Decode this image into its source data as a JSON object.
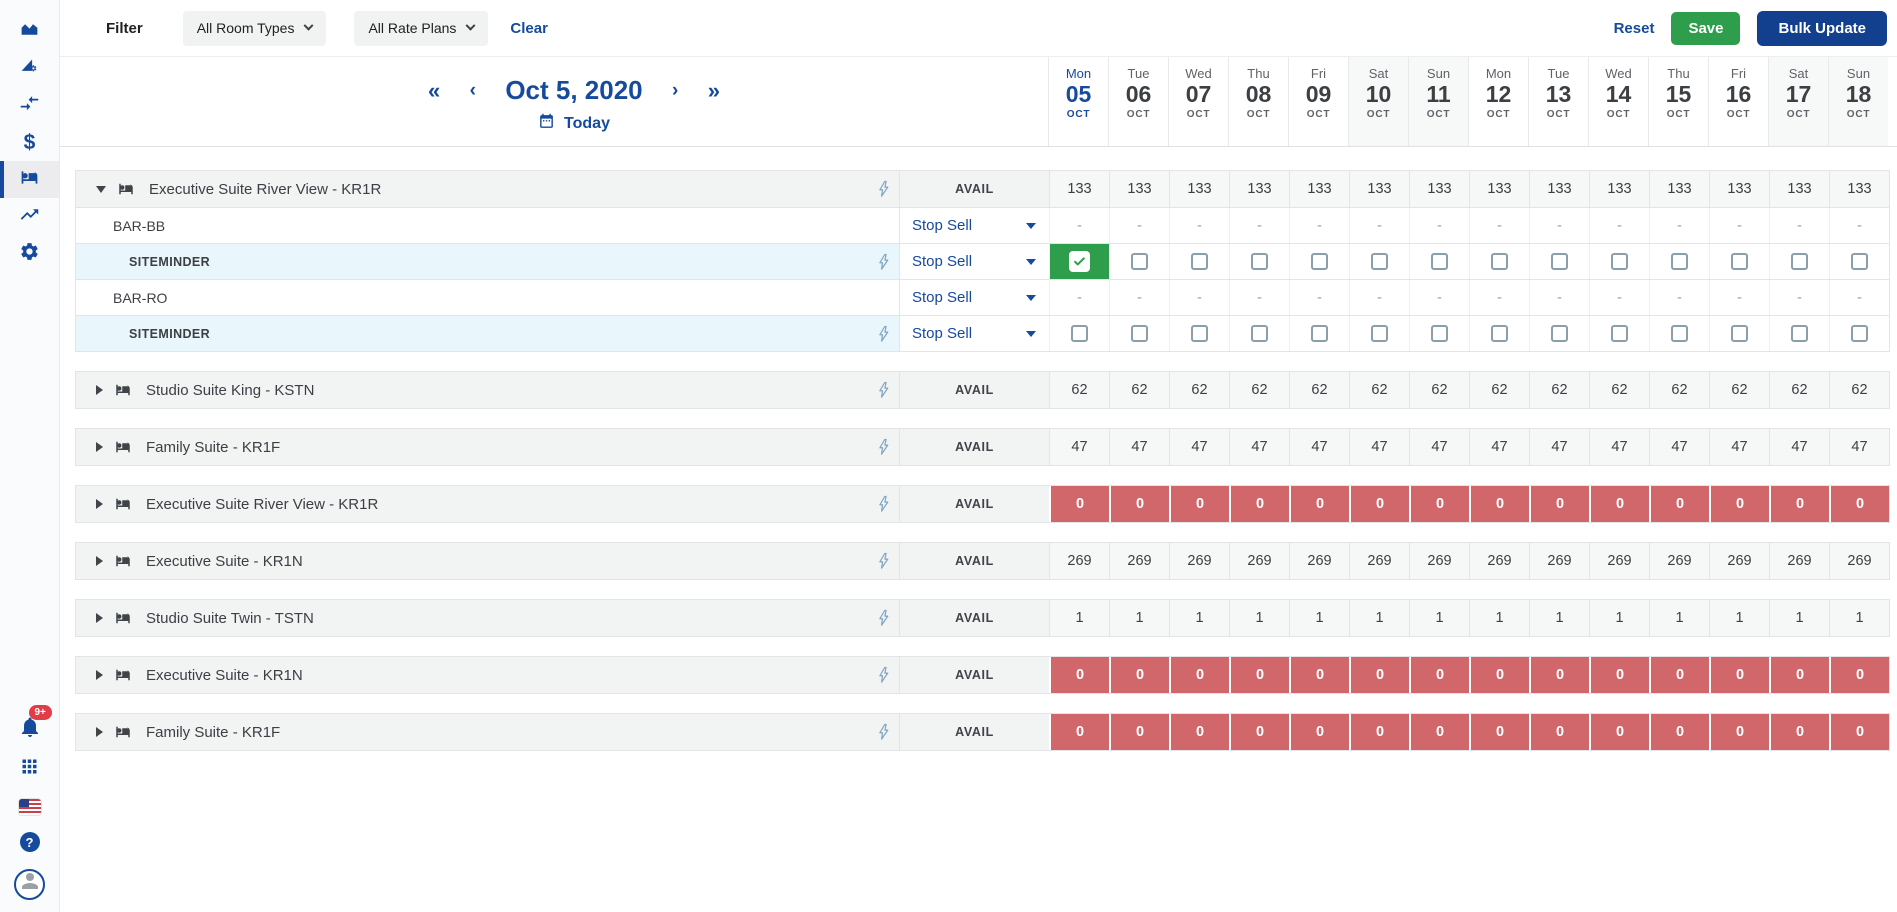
{
  "colors": {
    "accent": "#164A9C",
    "navy_button": "#123F8E",
    "green": "#2F9E4C",
    "red": "#D2676B",
    "badge_red": "#E13C48",
    "channel_row_blue": "#E9F6FC"
  },
  "sidebar": {
    "top_items": [
      {
        "id": "performance",
        "icon": "area-chart-icon",
        "active": false
      },
      {
        "id": "rate-setup",
        "icon": "ramp-gear-icon",
        "active": false
      },
      {
        "id": "distribution",
        "icon": "transfer-arrows-icon",
        "active": false
      },
      {
        "id": "pricing",
        "icon": "dollar-icon",
        "active": false
      },
      {
        "id": "rooms",
        "icon": "bed-icon",
        "active": true
      },
      {
        "id": "trends",
        "icon": "trending-up-icon",
        "active": false
      },
      {
        "id": "settings",
        "icon": "gear-icon",
        "active": false
      }
    ],
    "notifications_badge": "9+",
    "help_glyph": "?"
  },
  "filter_bar": {
    "label": "Filter",
    "room_types_value": "All Room Types",
    "rate_plans_value": "All Rate Plans",
    "clear": "Clear",
    "reset": "Reset",
    "save": "Save",
    "bulk_update": "Bulk Update"
  },
  "date_nav": {
    "first": "«",
    "prev": "‹",
    "current": "Oct 5, 2020",
    "next": "›",
    "last": "»",
    "today": "Today"
  },
  "calendar": {
    "days": [
      {
        "dow": "Mon",
        "day": "05",
        "month": "OCT",
        "today": true,
        "weekend": false
      },
      {
        "dow": "Tue",
        "day": "06",
        "month": "OCT",
        "today": false,
        "weekend": false
      },
      {
        "dow": "Wed",
        "day": "07",
        "month": "OCT",
        "today": false,
        "weekend": false
      },
      {
        "dow": "Thu",
        "day": "08",
        "month": "OCT",
        "today": false,
        "weekend": false
      },
      {
        "dow": "Fri",
        "day": "09",
        "month": "OCT",
        "today": false,
        "weekend": false
      },
      {
        "dow": "Sat",
        "day": "10",
        "month": "OCT",
        "today": false,
        "weekend": true
      },
      {
        "dow": "Sun",
        "day": "11",
        "month": "OCT",
        "today": false,
        "weekend": true
      },
      {
        "dow": "Mon",
        "day": "12",
        "month": "OCT",
        "today": false,
        "weekend": false
      },
      {
        "dow": "Tue",
        "day": "13",
        "month": "OCT",
        "today": false,
        "weekend": false
      },
      {
        "dow": "Wed",
        "day": "14",
        "month": "OCT",
        "today": false,
        "weekend": false
      },
      {
        "dow": "Thu",
        "day": "15",
        "month": "OCT",
        "today": false,
        "weekend": false
      },
      {
        "dow": "Fri",
        "day": "16",
        "month": "OCT",
        "today": false,
        "weekend": false
      },
      {
        "dow": "Sat",
        "day": "17",
        "month": "OCT",
        "today": false,
        "weekend": true
      },
      {
        "dow": "Sun",
        "day": "18",
        "month": "OCT",
        "today": false,
        "weekend": true
      }
    ]
  },
  "table": {
    "avail_label": "AVAIL",
    "stop_sell_label": "Stop Sell",
    "dash": "-",
    "sections": [
      {
        "name": "Executive Suite River View - KR1R",
        "expanded": true,
        "red": false,
        "avail": [
          "133",
          "133",
          "133",
          "133",
          "133",
          "133",
          "133",
          "133",
          "133",
          "133",
          "133",
          "133",
          "133",
          "133"
        ],
        "plans": [
          {
            "label": "BAR-BB",
            "kind": "rate",
            "cells": "dash"
          },
          {
            "label": "SITEMINDER",
            "kind": "channel",
            "cells": "checkbox",
            "checked": [
              true,
              false,
              false,
              false,
              false,
              false,
              false,
              false,
              false,
              false,
              false,
              false,
              false,
              false
            ]
          },
          {
            "label": "BAR-RO",
            "kind": "rate",
            "cells": "dash"
          },
          {
            "label": "SITEMINDER",
            "kind": "channel",
            "cells": "checkbox",
            "checked": [
              false,
              false,
              false,
              false,
              false,
              false,
              false,
              false,
              false,
              false,
              false,
              false,
              false,
              false
            ]
          }
        ]
      },
      {
        "name": "Studio Suite King - KSTN",
        "expanded": false,
        "red": false,
        "avail": [
          "62",
          "62",
          "62",
          "62",
          "62",
          "62",
          "62",
          "62",
          "62",
          "62",
          "62",
          "62",
          "62",
          "62"
        ],
        "plans": []
      },
      {
        "name": "Family Suite - KR1F",
        "expanded": false,
        "red": false,
        "avail": [
          "47",
          "47",
          "47",
          "47",
          "47",
          "47",
          "47",
          "47",
          "47",
          "47",
          "47",
          "47",
          "47",
          "47"
        ],
        "plans": []
      },
      {
        "name": "Executive Suite River View - KR1R",
        "expanded": false,
        "red": true,
        "avail": [
          "0",
          "0",
          "0",
          "0",
          "0",
          "0",
          "0",
          "0",
          "0",
          "0",
          "0",
          "0",
          "0",
          "0"
        ],
        "plans": []
      },
      {
        "name": "Executive Suite - KR1N",
        "expanded": false,
        "red": false,
        "avail": [
          "269",
          "269",
          "269",
          "269",
          "269",
          "269",
          "269",
          "269",
          "269",
          "269",
          "269",
          "269",
          "269",
          "269"
        ],
        "plans": []
      },
      {
        "name": "Studio Suite Twin - TSTN",
        "expanded": false,
        "red": false,
        "avail": [
          "1",
          "1",
          "1",
          "1",
          "1",
          "1",
          "1",
          "1",
          "1",
          "1",
          "1",
          "1",
          "1",
          "1"
        ],
        "plans": []
      },
      {
        "name": "Executive Suite - KR1N",
        "expanded": false,
        "red": true,
        "avail": [
          "0",
          "0",
          "0",
          "0",
          "0",
          "0",
          "0",
          "0",
          "0",
          "0",
          "0",
          "0",
          "0",
          "0"
        ],
        "plans": []
      },
      {
        "name": "Family Suite - KR1F",
        "expanded": false,
        "red": true,
        "avail": [
          "0",
          "0",
          "0",
          "0",
          "0",
          "0",
          "0",
          "0",
          "0",
          "0",
          "0",
          "0",
          "0",
          "0"
        ],
        "plans": []
      }
    ]
  }
}
